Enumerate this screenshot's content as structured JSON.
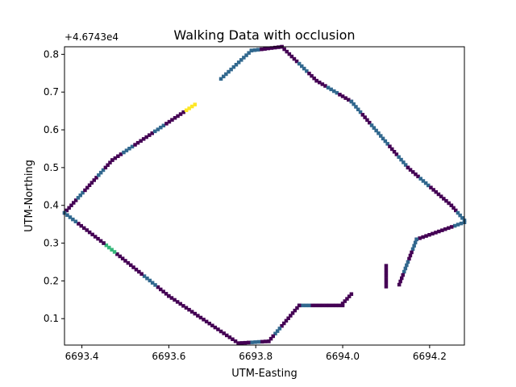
{
  "chart_data": {
    "type": "heatmap",
    "title": "Walking Data with occlusion",
    "xlabel": "UTM-Easting",
    "ylabel": "UTM-Northing",
    "y_offset_label": "+4.6743e4",
    "xlim": [
      6693.36,
      6694.28
    ],
    "ylim": [
      0.03,
      0.82
    ],
    "xticks": [
      6693.4,
      6693.6,
      6693.8,
      6694.0,
      6694.2
    ],
    "xtick_labels": [
      "6693.4",
      "6693.6",
      "6693.8",
      "6694.0",
      "6694.2"
    ],
    "yticks": [
      0.1,
      0.2,
      0.3,
      0.4,
      0.5,
      0.6,
      0.7,
      0.8
    ],
    "ytick_labels": [
      "0.1",
      "0.2",
      "0.3",
      "0.4",
      "0.5",
      "0.6",
      "0.7",
      "0.8"
    ],
    "colormap": [
      "#440154",
      "#31688e",
      "#35b779",
      "#fde725"
    ],
    "grid": false,
    "legend": "none",
    "segments": [
      {
        "from": [
          6693.36,
          0.38
        ],
        "to": [
          6693.47,
          0.52
        ],
        "density": [
          0,
          0,
          1,
          0,
          0,
          1,
          0
        ]
      },
      {
        "from": [
          6693.47,
          0.52
        ],
        "to": [
          6693.66,
          0.667
        ],
        "density": [
          0,
          1,
          0,
          0,
          1,
          0,
          0,
          3
        ]
      },
      {
        "from": [
          6693.72,
          0.735
        ],
        "to": [
          6693.79,
          0.81
        ],
        "density": [
          1,
          1,
          1
        ]
      },
      {
        "from": [
          6693.79,
          0.81
        ],
        "to": [
          6693.86,
          0.82
        ],
        "density": [
          1,
          0,
          0
        ]
      },
      {
        "from": [
          6693.86,
          0.82
        ],
        "to": [
          6693.94,
          0.73
        ],
        "density": [
          0,
          0,
          1,
          0
        ]
      },
      {
        "from": [
          6693.94,
          0.73
        ],
        "to": [
          6694.02,
          0.675
        ],
        "density": [
          0,
          1,
          0
        ]
      },
      {
        "from": [
          6694.02,
          0.675
        ],
        "to": [
          6694.15,
          0.5
        ],
        "density": [
          1,
          0,
          1,
          1,
          0,
          1
        ]
      },
      {
        "from": [
          6694.15,
          0.5
        ],
        "to": [
          6694.25,
          0.4
        ],
        "density": [
          0,
          1,
          0,
          0
        ]
      },
      {
        "from": [
          6694.25,
          0.4
        ],
        "to": [
          6694.28,
          0.36
        ],
        "density": [
          0,
          1
        ]
      },
      {
        "from": [
          6694.28,
          0.355
        ],
        "to": [
          6694.17,
          0.31
        ],
        "density": [
          1,
          0,
          0,
          0
        ]
      },
      {
        "from": [
          6694.17,
          0.31
        ],
        "to": [
          6694.13,
          0.19
        ],
        "density": [
          1,
          0,
          1,
          0
        ]
      },
      {
        "from": [
          6694.1,
          0.185
        ],
        "to": [
          6694.1,
          0.24
        ],
        "density": [
          0,
          0
        ]
      },
      {
        "from": [
          6694.0,
          0.14
        ],
        "to": [
          6694.02,
          0.165
        ],
        "density": [
          0,
          0
        ]
      },
      {
        "from": [
          6693.9,
          0.135
        ],
        "to": [
          6694.0,
          0.135
        ],
        "density": [
          1,
          0,
          0,
          0
        ]
      },
      {
        "from": [
          6693.9,
          0.135
        ],
        "to": [
          6693.83,
          0.04
        ],
        "density": [
          0,
          0,
          0,
          1,
          0
        ]
      },
      {
        "from": [
          6693.83,
          0.04
        ],
        "to": [
          6693.76,
          0.035
        ],
        "density": [
          0,
          1,
          0
        ]
      },
      {
        "from": [
          6693.76,
          0.035
        ],
        "to": [
          6693.6,
          0.16
        ],
        "density": [
          0,
          0,
          0,
          0,
          0,
          0
        ]
      },
      {
        "from": [
          6693.6,
          0.16
        ],
        "to": [
          6693.45,
          0.3
        ],
        "density": [
          0,
          1,
          0,
          0,
          2
        ]
      },
      {
        "from": [
          6693.45,
          0.3
        ],
        "to": [
          6693.36,
          0.38
        ],
        "density": [
          0,
          0,
          1
        ]
      }
    ]
  }
}
